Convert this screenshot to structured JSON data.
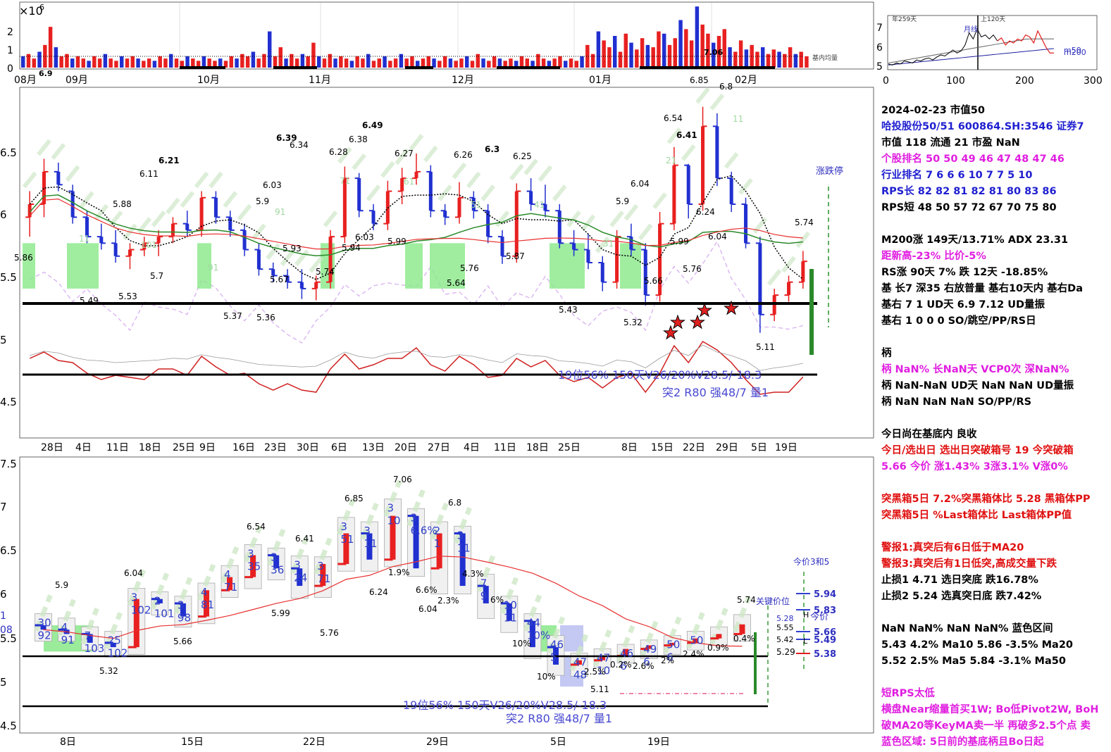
{
  "colors": {
    "up": "#e82020",
    "down": "#2030d0",
    "ma_green": "#2a8a2a",
    "ma_red": "#e83030",
    "dotted": "#000000",
    "rs_red": "#d02020",
    "box": "#88e888"
  },
  "volume_panel": {
    "exponent_label": "×10",
    "exponent_power": "6",
    "y_ticks": [
      "2",
      "1",
      "0"
    ],
    "x_ticks": [
      "08月",
      "09月",
      "10月",
      "11月",
      "12月",
      "01月",
      "02月"
    ],
    "annotations": [
      "6.9",
      "7.06"
    ],
    "legend_text": "基内均量"
  },
  "mini_panel": {
    "y_ticks": [
      "7",
      "6",
      "5"
    ],
    "x_ticks": [
      "0",
      "100",
      "200",
      "300"
    ],
    "labels": [
      "年259天",
      "上120天",
      "月线",
      "m50",
      "m200"
    ]
  },
  "main_panel": {
    "y_ticks": [
      "6.5",
      "6",
      "5.5",
      "5",
      "4.5"
    ],
    "x_ticks": [
      "28日",
      "4日",
      "11日",
      "18日",
      "25日",
      "9日",
      "16日",
      "23日",
      "30日",
      "6日",
      "13日",
      "20日",
      "27日",
      "4日",
      "11日",
      "18日",
      "25日",
      "8日",
      "15日",
      "22日",
      "29日",
      "5日",
      "19日"
    ],
    "price_labels": [
      "5.86",
      "6.11",
      "6.21",
      "5.88",
      "5.7",
      "5.49",
      "5.53",
      "6.39",
      "6.34",
      "6.03",
      "5.9",
      "5.93",
      "5.67",
      "5.37",
      "5.36",
      "5.74",
      "6.28",
      "6.38",
      "6.49",
      "6.03",
      "5.94",
      "6.27",
      "5.99",
      "5.64",
      "6.26",
      "6.3",
      "6.25",
      "5.76",
      "5.87",
      "5.43",
      "5.9",
      "6.04",
      "6.54",
      "6.41",
      "5.66",
      "5.32",
      "6.85",
      "6.8",
      "6.24",
      "5.99",
      "6.04",
      "5.76",
      "5.74",
      "5.11"
    ],
    "rank_numbers": [
      "11",
      "91",
      "71",
      "61",
      "51",
      "41",
      "31",
      "21",
      "91",
      "101",
      "11"
    ],
    "side_label": "涨跌停",
    "bottom_text_1": "19位56%  150天V26/20%V28.5/-18.3",
    "bottom_text_2": "突2 R80 强48/7 量1"
  },
  "lower_panel": {
    "y_ticks": [
      "7.5",
      "7",
      "6.5",
      "6",
      "5.5",
      "5",
      "4.5"
    ],
    "x_ticks": [
      "8日",
      "15日",
      "22日",
      "29日",
      "5日",
      "19日"
    ],
    "price_labels": [
      "5.9",
      "6.04",
      "5.66",
      "6.54",
      "6.41",
      "5.99",
      "6.85",
      "5.76",
      "7.06",
      "6.24",
      "6.8",
      "6.04",
      "5.32",
      "5.11",
      "5.74"
    ],
    "bar_numbers": [
      "30",
      "92",
      "4",
      "91",
      "7",
      "103",
      "25",
      "102",
      "3",
      "102",
      "2",
      "101",
      "3",
      "98",
      "4",
      "81",
      "4",
      "71",
      "3",
      "35",
      "3",
      "36",
      "3",
      "24",
      "3",
      "71",
      "3",
      "51",
      "3",
      "11",
      "3",
      "10",
      "3",
      "6.6%",
      "2",
      "1",
      "3",
      "11",
      "7",
      "9",
      "10",
      "11",
      "44",
      "10%",
      "46",
      "5",
      "47",
      "48",
      "47",
      "10",
      "46",
      "6",
      "49",
      "6",
      "50",
      "6",
      "50"
    ],
    "pct_labels": [
      "1.9%",
      "6.6%",
      "2.3%",
      "4.3%",
      "6%",
      "10%",
      "10%",
      "2.5%",
      "0.2%",
      "2.6%",
      "2%",
      "2.4%",
      "0.9%",
      "0.4%"
    ],
    "right_levels": [
      "5.94",
      "5.83",
      "5.66",
      "5.49",
      "5.38"
    ],
    "right_levels_2": [
      "5.29"
    ],
    "right_labels": [
      "今价3和5",
      "关键价位",
      "5.55",
      "5.42",
      "5.28",
      "今价",
      "H",
      "L"
    ],
    "bottom_text_1": "19位56%  150天V26/20%V28.5/-18.3",
    "bottom_text_2": "突2 R80 强48/7 量1",
    "left_cut_labels": [
      "1",
      "08"
    ]
  },
  "info_panel": {
    "lines": [
      {
        "t": "2024-02-23 市值50",
        "c": "k"
      },
      {
        "t": "哈投股份50/51 600864.SH:3546 证券7",
        "c": "b"
      },
      {
        "t": "市值 118  流通 21 市盈 NaN",
        "c": "k"
      },
      {
        "t": " 个股排名 50   50   49   46   47   48   47   46",
        "c": "m"
      },
      {
        "t": " 行业排名 7    6    6    6   10    7    7    5   10",
        "c": "b"
      },
      {
        "t": " RPS长 82   82   81   82   81   80   83   86",
        "c": "b"
      },
      {
        "t": " RPS短 48   50   57   72   67   70   75   80",
        "c": "k"
      },
      {
        "t": "",
        "c": "k"
      },
      {
        "t": "M200涨 149天/13.71%  ADX 23.31",
        "c": "k"
      },
      {
        "t": "距新高-23%  比价-5%",
        "c": "m"
      },
      {
        "t": "RS涨 90天 7% 跌 12天 -18.85%",
        "c": "k"
      },
      {
        "t": "基 长7 深35 右放普量 基右10天内 基右Da",
        "c": "k"
      },
      {
        "t": "基右 7 1 UD天 6.9 7.12 UD量振",
        "c": "k"
      },
      {
        "t": "基右 1 0 0 0 SO/跳空/PP/RS日",
        "c": "k"
      },
      {
        "t": "",
        "c": "k"
      },
      {
        "t": "柄",
        "c": "k"
      },
      {
        "t": "柄 NaN% 长NaN天  VCP0次 深NaN%",
        "c": "m"
      },
      {
        "t": "柄 NaN-NaN UD天 NaN NaN UD量振",
        "c": "k"
      },
      {
        "t": "柄 NaN NaN NaN SO/PP/RS",
        "c": "k"
      },
      {
        "t": "",
        "c": "k"
      },
      {
        "t": "今日尚在基底内 良收",
        "c": "k"
      },
      {
        "t": "今日/选出日  选出日突破箱号 19 今突破箱",
        "c": "r"
      },
      {
        "t": "5.66 今价  涨1.43% 3涨3.1% V涨0%",
        "c": "m"
      },
      {
        "t": "",
        "c": "k"
      },
      {
        "t": "突黑箱5日 7.2%突黑箱体比 5.28 黑箱体PP",
        "c": "r"
      },
      {
        "t": "突黑箱5日 %Last箱体比  Last箱体PP值",
        "c": "r"
      },
      {
        "t": "",
        "c": "k"
      },
      {
        "t": "警报1:真突后有6日低于MA20",
        "c": "r"
      },
      {
        "t": "警报3:真突后有1日低突,高成交量下跌",
        "c": "r"
      },
      {
        "t": "止损1 4.71 选日突底 跌16.78%",
        "c": "k"
      },
      {
        "t": "止损2 5.24 选真突日底 跌7.42%",
        "c": "k"
      },
      {
        "t": "",
        "c": "k"
      },
      {
        "t": "NaN NaN% NaN NaN% 蓝色区间",
        "c": "k"
      },
      {
        "t": "  5.43 4.2% Ma10   5.86 -3.5% Ma20",
        "c": "k"
      },
      {
        "t": "  5.52 2.5% Ma5    5.84 -3.1% Ma50",
        "c": "k"
      },
      {
        "t": "",
        "c": "k"
      },
      {
        "t": "短RPS太低",
        "c": "m"
      },
      {
        "t": "横盘Near缩量首买1W; Bo低Pivot2W, BoH",
        "c": "m"
      },
      {
        "t": "破MA20等KeyMA卖一半 再破多2.5个点 卖",
        "c": "m"
      },
      {
        "t": "蓝色区域:  5日前的基底柄且Bo日起",
        "c": "m"
      }
    ]
  },
  "chart_data": [
    {
      "type": "bar",
      "title": "",
      "ylabel": "",
      "ylim": [
        0,
        2.8
      ],
      "note_unit": "x10^6",
      "values": [
        0.5,
        0.6,
        0.4,
        0.7,
        1.0,
        1.8,
        0.9,
        0.5,
        0.6,
        0.4,
        0.5,
        0.4,
        0.3,
        0.5,
        0.4,
        0.6,
        0.4,
        0.3,
        0.5,
        0.4,
        0.5,
        0.4,
        0.3,
        0.4,
        0.3,
        0.5,
        0.4,
        0.6,
        0.4,
        0.3,
        0.5,
        0.4,
        0.3,
        0.5,
        0.4,
        0.3,
        0.4,
        0.3,
        0.5,
        0.4,
        0.6,
        0.5,
        0.7,
        0.4,
        0.6,
        1.6,
        0.5,
        0.9,
        0.4,
        0.6,
        0.4,
        0.6,
        0.5,
        1.1,
        0.5,
        0.4,
        0.6,
        0.4,
        0.5,
        0.4,
        0.3,
        0.5,
        0.4,
        0.6,
        0.3,
        0.4,
        0.5,
        0.3,
        0.4,
        0.6,
        0.4,
        0.5,
        0.3,
        0.4,
        0.5,
        0.4,
        0.3,
        0.5,
        0.4,
        0.3,
        0.4,
        0.5,
        0.3,
        0.6,
        0.4,
        0.3,
        0.5,
        0.4,
        0.3,
        0.4,
        0.3,
        0.5,
        0.4,
        0.3,
        0.6,
        0.4,
        0.3,
        0.4,
        0.5,
        0.3,
        0.4,
        0.3,
        0.5,
        1.0,
        0.6,
        1.6,
        1.2,
        0.9,
        1.4,
        0.7,
        1.5,
        1.1,
        0.8,
        1.3,
        1.0,
        0.9,
        1.6,
        1.5,
        1.0,
        1.3,
        2.1,
        1.7,
        1.2,
        2.7,
        1.9,
        1.5,
        1.1,
        1.4,
        1.7,
        0.9,
        0.7,
        1.2,
        0.8,
        1.0,
        0.7,
        0.9,
        0.6,
        0.8,
        0.7,
        0.6,
        0.9,
        0.6,
        0.7,
        0.5
      ]
    },
    {
      "type": "line",
      "title": "",
      "xlim": [
        0,
        300
      ],
      "ylim": [
        4.8,
        7.4
      ],
      "series": [
        {
          "values": [
            5.05,
            5.0,
            5.1,
            5.05,
            5.2,
            5.15,
            5.1,
            5.25,
            5.2,
            5.3,
            5.35,
            5.25,
            5.4,
            5.5,
            5.45,
            5.6,
            5.75,
            5.6,
            5.7,
            6.0,
            6.6,
            6.3,
            6.8,
            6.4,
            6.5,
            6.3,
            6.5,
            6.2,
            6.35,
            6.0,
            6.2,
            6.1,
            6.3,
            6.2,
            6.5,
            6.4,
            6.1,
            6.7,
            6.3,
            5.9,
            5.6,
            5.6
          ]
        }
      ]
    },
    {
      "type": "candlestick",
      "title": "",
      "ylim": [
        4.3,
        7.0
      ],
      "x_ticks": [
        "28日",
        "4日",
        "11日",
        "18日",
        "25日",
        "9日",
        "16日",
        "23日",
        "30日",
        "6日",
        "13日",
        "20日",
        "27日",
        "4日",
        "11日",
        "18日",
        "25日",
        "8日",
        "15日",
        "22日",
        "29日",
        "5日",
        "19日"
      ],
      "ohlc": [
        [
          6.0,
          6.2,
          5.85,
          6.1
        ],
        [
          6.1,
          6.45,
          6.0,
          6.35
        ],
        [
          6.35,
          6.42,
          6.2,
          6.25
        ],
        [
          6.2,
          6.25,
          5.95,
          6.0
        ],
        [
          6.0,
          6.05,
          5.8,
          5.85
        ],
        [
          5.85,
          5.95,
          5.75,
          5.8
        ],
        [
          5.8,
          5.9,
          5.65,
          5.7
        ],
        [
          5.7,
          5.8,
          5.6,
          5.75
        ],
        [
          5.75,
          5.85,
          5.7,
          5.8
        ],
        [
          5.8,
          5.9,
          5.7,
          5.85
        ],
        [
          5.85,
          6.0,
          5.8,
          5.95
        ],
        [
          5.95,
          6.05,
          5.85,
          5.9
        ],
        [
          5.9,
          6.2,
          5.85,
          6.15
        ],
        [
          6.15,
          6.2,
          5.95,
          6.0
        ],
        [
          6.0,
          6.05,
          5.85,
          5.9
        ],
        [
          5.9,
          5.95,
          5.7,
          5.75
        ],
        [
          5.75,
          5.8,
          5.55,
          5.6
        ],
        [
          5.6,
          5.65,
          5.5,
          5.55
        ],
        [
          5.55,
          5.6,
          5.45,
          5.5
        ],
        [
          5.5,
          5.6,
          5.37,
          5.45
        ],
        [
          5.45,
          5.55,
          5.36,
          5.5
        ],
        [
          5.5,
          5.9,
          5.45,
          5.85
        ],
        [
          5.85,
          6.39,
          5.8,
          6.3
        ],
        [
          6.3,
          6.34,
          6.0,
          6.05
        ],
        [
          6.05,
          6.1,
          5.9,
          5.95
        ],
        [
          5.95,
          6.28,
          5.9,
          6.2
        ],
        [
          6.2,
          6.38,
          6.1,
          6.3
        ],
        [
          6.3,
          6.49,
          6.25,
          6.35
        ],
        [
          6.35,
          6.4,
          6.0,
          6.05
        ],
        [
          6.05,
          6.1,
          5.94,
          6.0
        ],
        [
          6.0,
          6.27,
          5.95,
          6.15
        ],
        [
          6.15,
          6.2,
          5.99,
          6.05
        ],
        [
          6.05,
          6.1,
          5.8,
          5.85
        ],
        [
          5.85,
          5.9,
          5.64,
          5.7
        ],
        [
          5.7,
          6.26,
          5.65,
          6.2
        ],
        [
          6.2,
          6.3,
          6.05,
          6.1
        ],
        [
          6.1,
          6.25,
          6.0,
          6.05
        ],
        [
          6.05,
          6.1,
          5.76,
          5.8
        ],
        [
          5.8,
          5.9,
          5.7,
          5.75
        ],
        [
          5.75,
          5.87,
          5.6,
          5.65
        ],
        [
          5.65,
          5.7,
          5.43,
          5.5
        ],
        [
          5.5,
          5.9,
          5.45,
          5.85
        ],
        [
          5.85,
          5.95,
          5.7,
          5.75
        ],
        [
          5.75,
          5.8,
          5.32,
          5.4
        ],
        [
          5.4,
          6.04,
          5.35,
          5.95
        ],
        [
          5.95,
          6.54,
          5.9,
          6.4
        ],
        [
          6.4,
          6.41,
          5.99,
          6.1
        ],
        [
          6.1,
          6.85,
          6.05,
          6.7
        ],
        [
          6.7,
          6.8,
          6.24,
          6.3
        ],
        [
          6.3,
          6.35,
          6.04,
          6.1
        ],
        [
          6.1,
          6.15,
          5.76,
          5.8
        ],
        [
          5.8,
          5.85,
          5.11,
          5.25
        ],
        [
          5.25,
          5.45,
          5.2,
          5.4
        ],
        [
          5.4,
          5.55,
          5.35,
          5.5
        ],
        [
          5.5,
          5.74,
          5.45,
          5.66
        ]
      ],
      "reference_lines": [
        5.29,
        4.71
      ],
      "moving_averages": [
        "MA20",
        "MA50",
        "MA200"
      ]
    },
    {
      "type": "candlestick",
      "title": "",
      "ylim": [
        4.5,
        7.5
      ],
      "x_ticks": [
        "8日",
        "15日",
        "22日",
        "29日",
        "5日",
        "19日"
      ],
      "ohlc": [
        [
          5.65,
          5.75,
          5.5,
          5.6
        ],
        [
          5.6,
          5.7,
          5.5,
          5.55
        ],
        [
          5.55,
          5.6,
          5.4,
          5.45
        ],
        [
          5.45,
          5.55,
          5.32,
          5.4
        ],
        [
          5.4,
          6.04,
          5.35,
          5.95
        ],
        [
          5.95,
          6.0,
          5.8,
          5.9
        ],
        [
          5.9,
          5.95,
          5.66,
          5.75
        ],
        [
          5.75,
          6.1,
          5.7,
          6.05
        ],
        [
          6.05,
          6.3,
          6.0,
          6.2
        ],
        [
          6.2,
          6.54,
          6.1,
          6.45
        ],
        [
          6.45,
          6.5,
          6.2,
          6.3
        ],
        [
          6.3,
          6.41,
          5.99,
          6.1
        ],
        [
          6.1,
          6.4,
          6.0,
          6.35
        ],
        [
          6.35,
          6.85,
          6.3,
          6.7
        ],
        [
          6.7,
          6.8,
          6.3,
          6.4
        ],
        [
          6.4,
          7.06,
          6.35,
          6.9
        ],
        [
          6.9,
          6.95,
          6.24,
          6.3
        ],
        [
          6.3,
          6.8,
          6.04,
          6.7
        ],
        [
          6.7,
          6.75,
          6.04,
          6.1
        ],
        [
          6.1,
          6.2,
          5.76,
          5.9
        ],
        [
          5.9,
          5.95,
          5.6,
          5.7
        ],
        [
          5.7,
          5.75,
          5.3,
          5.4
        ],
        [
          5.4,
          5.5,
          5.11,
          5.2
        ],
        [
          5.2,
          5.3,
          5.1,
          5.25
        ],
        [
          5.25,
          5.35,
          5.2,
          5.3
        ],
        [
          5.3,
          5.4,
          5.25,
          5.38
        ],
        [
          5.38,
          5.45,
          5.3,
          5.42
        ],
        [
          5.42,
          5.5,
          5.35,
          5.45
        ],
        [
          5.45,
          5.55,
          5.4,
          5.5
        ],
        [
          5.5,
          5.6,
          5.45,
          5.55
        ],
        [
          5.55,
          5.74,
          5.5,
          5.66
        ]
      ],
      "reference_lines": [
        5.29,
        4.71
      ],
      "key_levels": [
        5.94,
        5.83,
        5.66,
        5.49,
        5.38
      ]
    }
  ]
}
